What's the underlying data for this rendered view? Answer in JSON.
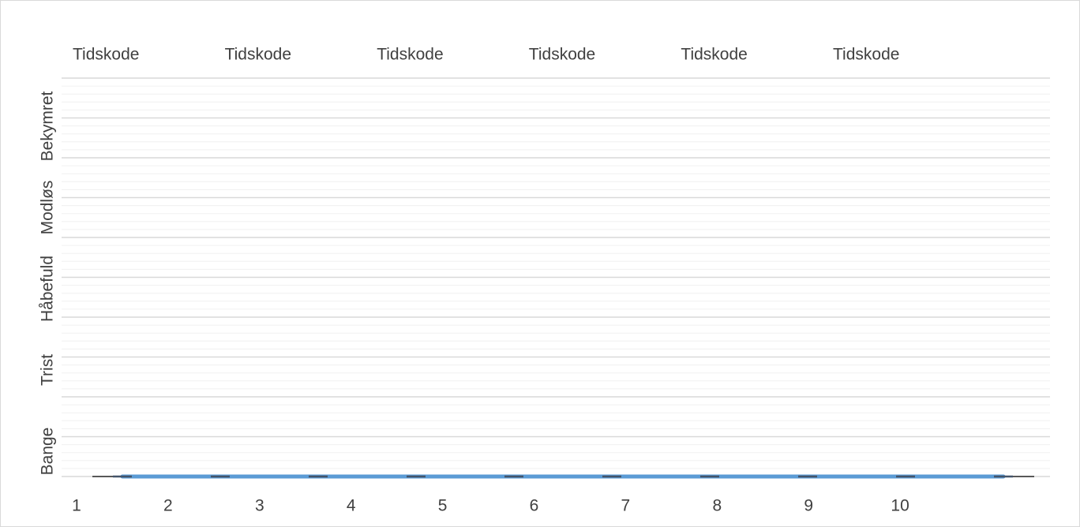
{
  "chart_data": {
    "type": "line",
    "top_labels": [
      "Tidskode",
      "Tidskode",
      "Tidskode",
      "Tidskode",
      "Tidskode",
      "Tidskode"
    ],
    "y_category_labels": [
      "Bange",
      "Trist",
      "Håbefuld",
      "Modløs",
      "Bekymret"
    ],
    "categories": [
      "1",
      "2",
      "3",
      "4",
      "5",
      "6",
      "7",
      "8",
      "9",
      "10"
    ],
    "series": [
      {
        "color": "#5b9bd5",
        "marker_color": "#44546a",
        "values": [
          0,
          0,
          0,
          0,
          0,
          0,
          0,
          0,
          0,
          0
        ]
      }
    ],
    "ylim": [
      0,
      10
    ],
    "yticks": [
      0,
      1,
      2,
      3,
      4,
      5,
      6,
      7,
      8,
      9,
      10
    ],
    "grid": true,
    "minor_grid_per_major": 5
  }
}
